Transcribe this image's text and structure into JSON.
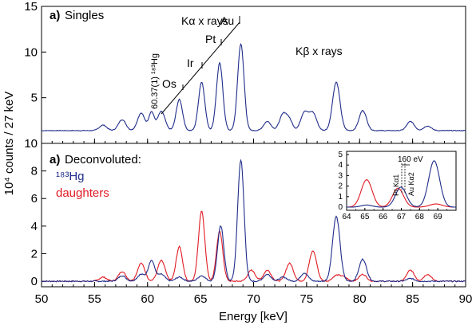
{
  "figure": {
    "shared_xlabel": "Energy [keV]",
    "shared_ylabel": "10⁴ counts / 27 keV",
    "colors": {
      "hg": "#1f2d8a",
      "daughters": "#e01b24",
      "singles": "#1f2d8a",
      "axes": "#000000"
    }
  },
  "chart_data": [
    {
      "id": "top",
      "type": "line",
      "title": "Singles",
      "panel_label": "a)",
      "xlim": [
        50,
        90
      ],
      "ylim": [
        0,
        15
      ],
      "xticks": [
        50,
        55,
        60,
        65,
        70,
        75,
        80,
        85,
        90
      ],
      "yticks": [
        5,
        10,
        15
      ],
      "grid": false,
      "annotations": {
        "kalpha": "Kα x rays",
        "kbeta": "Kβ x rays",
        "elements": [
          "Os",
          "Ir",
          "Pt",
          "Au"
        ],
        "gamma_line": "60.37(1) ¹⁸³Hg"
      },
      "series": [
        {
          "name": "Singles",
          "baseline": 1.4,
          "peaks": [
            {
              "x": 55.8,
              "h": 0.6,
              "w": 0.35
            },
            {
              "x": 57.6,
              "h": 1.2,
              "w": 0.35
            },
            {
              "x": 59.4,
              "h": 1.9,
              "w": 0.35
            },
            {
              "x": 60.37,
              "h": 2.0,
              "w": 0.25
            },
            {
              "x": 61.3,
              "h": 2.1,
              "w": 0.35
            },
            {
              "x": 63.0,
              "h": 3.4,
              "w": 0.3
            },
            {
              "x": 65.1,
              "h": 5.3,
              "w": 0.3
            },
            {
              "x": 66.8,
              "h": 7.4,
              "w": 0.3
            },
            {
              "x": 68.8,
              "h": 9.5,
              "w": 0.3
            },
            {
              "x": 71.3,
              "h": 1.0,
              "w": 0.35
            },
            {
              "x": 72.8,
              "h": 1.8,
              "w": 0.35
            },
            {
              "x": 73.4,
              "h": 1.0,
              "w": 0.3
            },
            {
              "x": 74.8,
              "h": 2.0,
              "w": 0.35
            },
            {
              "x": 75.6,
              "h": 1.9,
              "w": 0.35
            },
            {
              "x": 77.8,
              "h": 5.3,
              "w": 0.35
            },
            {
              "x": 80.3,
              "h": 2.2,
              "w": 0.35
            },
            {
              "x": 84.8,
              "h": 1.0,
              "w": 0.35
            },
            {
              "x": 86.4,
              "h": 0.5,
              "w": 0.35
            }
          ]
        }
      ]
    },
    {
      "id": "bottom",
      "type": "line",
      "title": "Deconvoluted:",
      "panel_label": "a)",
      "xlim": [
        50,
        90
      ],
      "ylim": [
        -0.4,
        10
      ],
      "xticks": [
        50,
        55,
        60,
        65,
        70,
        75,
        80,
        85,
        90
      ],
      "yticks": [
        0,
        2,
        4,
        6,
        8,
        10
      ],
      "grid": false,
      "legend_placement": "top-left",
      "series": [
        {
          "name": "¹⁸³Hg",
          "baseline": 0.0,
          "peaks": [
            {
              "x": 57.6,
              "h": 0.4,
              "w": 0.35
            },
            {
              "x": 59.4,
              "h": 0.5,
              "w": 0.35
            },
            {
              "x": 60.37,
              "h": 1.5,
              "w": 0.3
            },
            {
              "x": 61.3,
              "h": 0.5,
              "w": 0.35
            },
            {
              "x": 63.0,
              "h": 0.3,
              "w": 0.35
            },
            {
              "x": 65.1,
              "h": 0.4,
              "w": 0.35
            },
            {
              "x": 66.9,
              "h": 4.0,
              "w": 0.3
            },
            {
              "x": 68.8,
              "h": 8.8,
              "w": 0.3
            },
            {
              "x": 71.3,
              "h": 0.5,
              "w": 0.35
            },
            {
              "x": 72.8,
              "h": 0.3,
              "w": 0.35
            },
            {
              "x": 74.8,
              "h": 0.6,
              "w": 0.35
            },
            {
              "x": 77.8,
              "h": 4.7,
              "w": 0.35
            },
            {
              "x": 80.3,
              "h": 1.6,
              "w": 0.35
            },
            {
              "x": 84.8,
              "h": 0.2,
              "w": 0.35
            }
          ]
        },
        {
          "name": "daughters",
          "baseline": 0.0,
          "peaks": [
            {
              "x": 55.8,
              "h": 0.3,
              "w": 0.35
            },
            {
              "x": 57.6,
              "h": 0.7,
              "w": 0.35
            },
            {
              "x": 59.4,
              "h": 1.3,
              "w": 0.35
            },
            {
              "x": 61.3,
              "h": 1.5,
              "w": 0.35
            },
            {
              "x": 63.0,
              "h": 2.5,
              "w": 0.3
            },
            {
              "x": 65.1,
              "h": 5.1,
              "w": 0.3
            },
            {
              "x": 66.8,
              "h": 3.6,
              "w": 0.3
            },
            {
              "x": 69.8,
              "h": 0.8,
              "w": 0.35
            },
            {
              "x": 71.3,
              "h": 0.8,
              "w": 0.35
            },
            {
              "x": 73.4,
              "h": 1.3,
              "w": 0.35
            },
            {
              "x": 75.6,
              "h": 2.2,
              "w": 0.35
            },
            {
              "x": 77.8,
              "h": 0.4,
              "w": 0.35
            },
            {
              "x": 78.5,
              "h": 0.3,
              "w": 0.35
            },
            {
              "x": 80.3,
              "h": 0.5,
              "w": 0.35
            },
            {
              "x": 84.8,
              "h": 0.8,
              "w": 0.35
            },
            {
              "x": 86.4,
              "h": 0.5,
              "w": 0.35
            }
          ]
        }
      ]
    },
    {
      "id": "inset",
      "type": "line",
      "xlim": [
        64,
        70
      ],
      "ylim": [
        -0.3,
        5.3
      ],
      "xticks": [
        64,
        65,
        66,
        67,
        68,
        69
      ],
      "yticks": [
        0,
        1,
        2,
        3,
        4,
        5
      ],
      "grid": false,
      "annotations": {
        "separation": "160 eV",
        "pt_label": "Pt Kα1",
        "au_label": "Au Kα2"
      },
      "series": [
        {
          "name": "¹⁸³Hg",
          "baseline": 0.0,
          "peaks": [
            {
              "x": 65.1,
              "h": 0.2,
              "w": 0.3
            },
            {
              "x": 66.98,
              "h": 1.9,
              "w": 0.3
            },
            {
              "x": 68.8,
              "h": 4.4,
              "w": 0.3
            }
          ]
        },
        {
          "name": "daughters",
          "baseline": 0.0,
          "peaks": [
            {
              "x": 65.1,
              "h": 2.6,
              "w": 0.3
            },
            {
              "x": 66.82,
              "h": 1.8,
              "w": 0.3
            },
            {
              "x": 68.9,
              "h": 0.3,
              "w": 0.35
            }
          ]
        }
      ]
    }
  ]
}
